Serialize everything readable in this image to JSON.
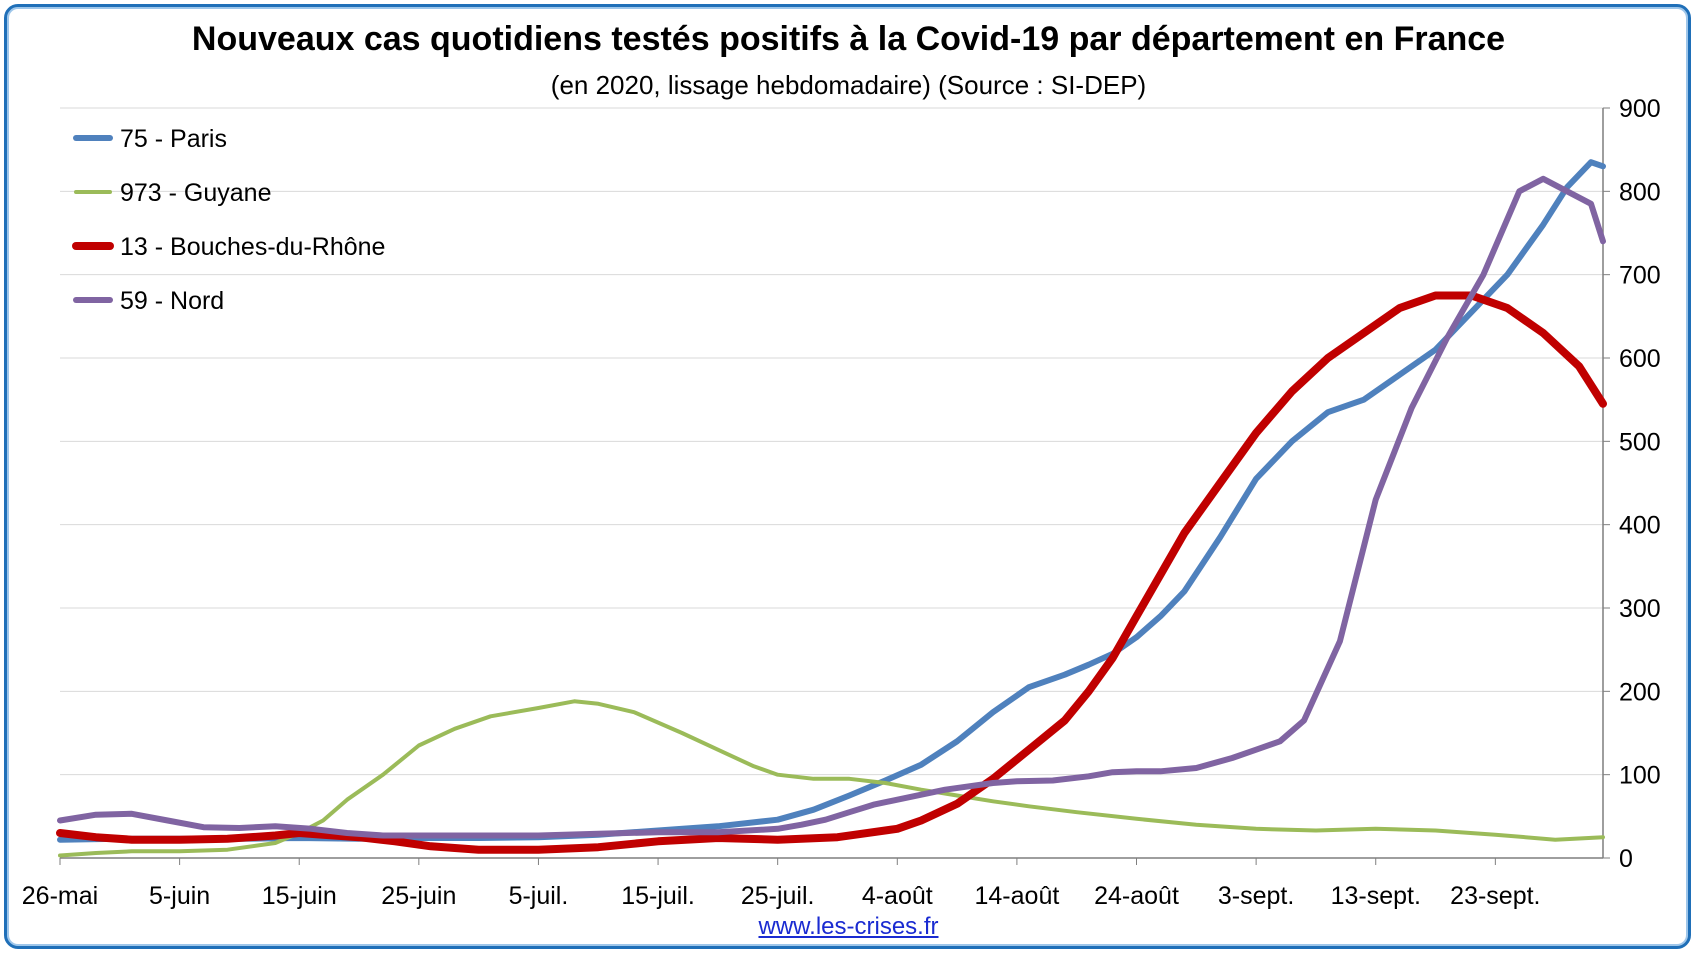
{
  "chart_data": {
    "type": "line",
    "title": "Nouveaux cas quotidiens testés positifs à la Covid-19 par département en France",
    "subtitle": "(en 2020, lissage hebdomadaire) (Source : SI-DEP)",
    "source_link": "www.les-crises.fr",
    "x_tick_labels": [
      "26-mai",
      "5-juin",
      "15-juin",
      "25-juin",
      "5-juil.",
      "15-juil.",
      "25-juil.",
      "4-août",
      "14-août",
      "24-août",
      "3-sept.",
      "13-sept.",
      "23-sept."
    ],
    "y_tick_labels": [
      "0",
      "100",
      "200",
      "300",
      "400",
      "500",
      "600",
      "700",
      "800",
      "900"
    ],
    "ylim": [
      0,
      900
    ],
    "x_days_since_start_range": [
      0,
      129
    ],
    "grid": true,
    "y_axis_side": "right",
    "legend_position": "top-left",
    "series": [
      {
        "name": "75 - Paris",
        "color": "#4f81bd",
        "x": [
          0,
          5,
          10,
          15,
          20,
          25,
          30,
          35,
          40,
          45,
          50,
          55,
          60,
          63,
          66,
          69,
          72,
          75,
          78,
          81,
          84,
          86,
          88,
          90,
          92,
          94,
          97,
          100,
          103,
          106,
          109,
          112,
          115,
          118,
          121,
          124,
          126,
          128,
          129
        ],
        "values": [
          22,
          23,
          23,
          23,
          24,
          23,
          24,
          24,
          25,
          28,
          33,
          38,
          46,
          58,
          75,
          93,
          112,
          140,
          175,
          205,
          220,
          232,
          245,
          265,
          290,
          320,
          385,
          455,
          500,
          535,
          550,
          580,
          610,
          655,
          700,
          760,
          805,
          835,
          830
        ]
      },
      {
        "name": "973 - Guyane",
        "color": "#9bbb59",
        "x": [
          0,
          3,
          6,
          10,
          14,
          18,
          20,
          22,
          24,
          27,
          30,
          33,
          36,
          40,
          43,
          45,
          48,
          52,
          55,
          58,
          60,
          63,
          66,
          69,
          72,
          75,
          78,
          81,
          85,
          90,
          95,
          100,
          105,
          110,
          115,
          120,
          125,
          129
        ],
        "values": [
          3,
          6,
          8,
          8,
          10,
          18,
          30,
          45,
          70,
          100,
          135,
          155,
          170,
          180,
          188,
          185,
          175,
          150,
          130,
          110,
          100,
          95,
          95,
          90,
          82,
          75,
          68,
          62,
          55,
          47,
          40,
          35,
          33,
          35,
          33,
          28,
          22,
          25
        ]
      },
      {
        "name": "13 - Bouches-du-Rhône",
        "color": "#c00000",
        "x": [
          0,
          3,
          6,
          10,
          14,
          18,
          20,
          22,
          25,
          28,
          31,
          35,
          40,
          45,
          50,
          55,
          60,
          65,
          70,
          72,
          75,
          78,
          81,
          84,
          86,
          88,
          90,
          92,
          94,
          97,
          100,
          103,
          106,
          109,
          112,
          115,
          118,
          121,
          124,
          127,
          129
        ],
        "values": [
          30,
          25,
          22,
          22,
          23,
          27,
          30,
          28,
          25,
          20,
          14,
          10,
          10,
          13,
          20,
          24,
          22,
          25,
          35,
          45,
          65,
          95,
          130,
          165,
          200,
          240,
          290,
          340,
          390,
          450,
          510,
          560,
          600,
          630,
          660,
          675,
          675,
          660,
          630,
          590,
          545
        ]
      },
      {
        "name": "59 - Nord",
        "color": "#8064a2",
        "x": [
          0,
          3,
          6,
          9,
          12,
          15,
          18,
          21,
          24,
          27,
          30,
          33,
          36,
          40,
          45,
          50,
          55,
          60,
          62,
          64,
          66,
          68,
          70,
          72,
          74,
          76,
          78,
          80,
          83,
          86,
          88,
          90,
          92,
          95,
          98,
          100,
          102,
          104,
          107,
          110,
          113,
          116,
          119,
          122,
          124,
          126,
          128,
          129
        ],
        "values": [
          45,
          52,
          53,
          45,
          37,
          36,
          38,
          35,
          30,
          27,
          27,
          27,
          27,
          27,
          29,
          31,
          31,
          35,
          40,
          46,
          55,
          64,
          70,
          76,
          82,
          86,
          90,
          92,
          93,
          98,
          103,
          104,
          104,
          108,
          120,
          130,
          140,
          165,
          260,
          430,
          540,
          625,
          700,
          800,
          815,
          800,
          785,
          740
        ]
      }
    ]
  }
}
